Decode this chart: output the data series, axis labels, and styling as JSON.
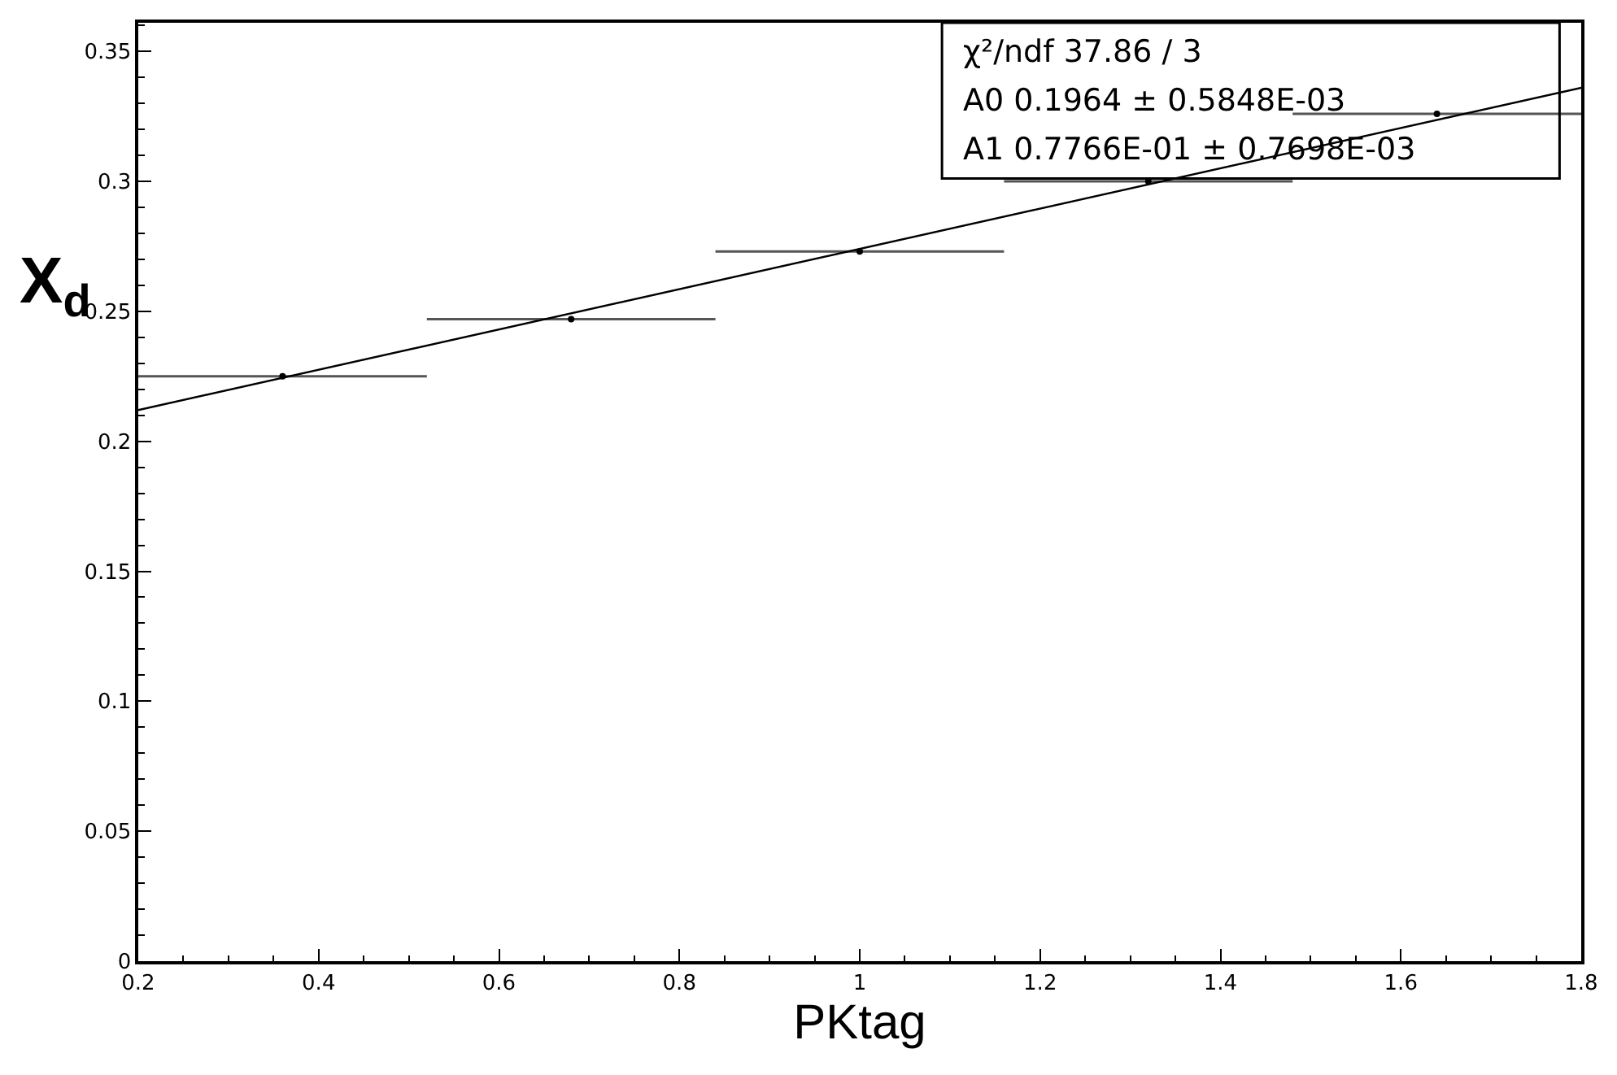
{
  "chart_data": {
    "type": "scatter",
    "xlabel": "PKtag",
    "ylabel": "X$_{d}$",
    "xlim": [
      0.2,
      1.8
    ],
    "xticks": [
      0.2,
      0.4,
      0.6,
      0.8,
      1,
      1.2,
      1.4,
      1.6,
      1.8
    ],
    "ylim": [
      0,
      0.361
    ],
    "yticks": [
      0,
      0.05,
      0.1,
      0.15,
      0.2,
      0.25,
      0.3,
      0.35
    ],
    "series": [
      {
        "color": "#000000",
        "marker": "circle",
        "x": [
          0.36,
          0.68,
          1.0,
          1.32,
          1.64
        ],
        "values": [
          0.225,
          0.247,
          0.273,
          0.3,
          0.326
        ],
        "xerrors": [
          0.16,
          0.16,
          0.16,
          0.16,
          0.16
        ]
      },
      {
        "type": "line",
        "color": "#000000",
        "marker": "none",
        "line_style": "solid",
        "x": [
          0.2,
          1.8
        ],
        "values": [
          0.212,
          0.336
        ]
      }
    ],
    "annotations": [
      "χ²/ndf 37.86 / 3",
      "A0 0.1964 ± 0.5848E-03",
      "A1 0.7766E-01 ± 0.7698E-03"
    ]
  }
}
